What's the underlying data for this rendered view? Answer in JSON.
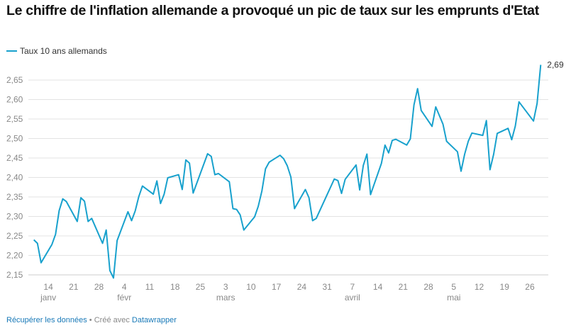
{
  "title": "Le chiffre de l'inflation allemande a provoqué un pic de taux sur les emprunts d'Etat",
  "legend": {
    "label": "Taux 10 ans allemands",
    "color": "#18a1cd"
  },
  "footer": {
    "get_data": "Récupérer les données",
    "separator": " • Créé avec ",
    "tool": "Datawrapper"
  },
  "chart_data": {
    "type": "line",
    "title": "Le chiffre de l'inflation allemande a provoqué un pic de taux sur les emprunts d'Etat",
    "xlabel": "",
    "ylabel": "",
    "x_unit": "day of year 2024 (1 = 1 janv)",
    "xlim": [
      8.5,
      152.1
    ],
    "ylim": [
      2.15,
      2.69
    ],
    "grid": true,
    "legend_position": "top-left",
    "y_ticks": [
      "2,15",
      "2,20",
      "2,25",
      "2,30",
      "2,35",
      "2,40",
      "2,45",
      "2,50",
      "2,55",
      "2,60",
      "2,65"
    ],
    "y_tick_values": [
      2.15,
      2.2,
      2.25,
      2.3,
      2.35,
      2.4,
      2.45,
      2.5,
      2.55,
      2.6,
      2.65
    ],
    "x_ticks": [
      {
        "day": 14,
        "label": "14",
        "month": "janv"
      },
      {
        "day": 21,
        "label": "21"
      },
      {
        "day": 28,
        "label": "28"
      },
      {
        "day": 35,
        "label": "4",
        "month": "févr"
      },
      {
        "day": 42,
        "label": "11"
      },
      {
        "day": 49,
        "label": "18"
      },
      {
        "day": 56,
        "label": "25"
      },
      {
        "day": 63,
        "label": "3",
        "month": "mars"
      },
      {
        "day": 70,
        "label": "10"
      },
      {
        "day": 77,
        "label": "17"
      },
      {
        "day": 84,
        "label": "24"
      },
      {
        "day": 91,
        "label": "31"
      },
      {
        "day": 98,
        "label": "7",
        "month": "avril"
      },
      {
        "day": 105,
        "label": "14"
      },
      {
        "day": 112,
        "label": "21"
      },
      {
        "day": 119,
        "label": "28"
      },
      {
        "day": 126,
        "label": "5",
        "month": "mai"
      },
      {
        "day": 133,
        "label": "12"
      },
      {
        "day": 140,
        "label": "19"
      },
      {
        "day": 147,
        "label": "26"
      }
    ],
    "end_label": "2,69",
    "series": [
      {
        "name": "Taux 10 ans allemands",
        "color": "#18a1cd",
        "x": [
          10,
          11,
          12,
          15,
          16,
          17,
          18,
          19,
          22,
          23,
          24,
          25,
          26,
          29,
          30,
          31,
          32,
          33,
          36,
          37,
          38,
          39,
          40,
          43,
          44,
          45,
          46,
          47,
          50,
          51,
          52,
          53,
          54,
          58,
          59,
          60,
          61,
          64,
          65,
          66,
          67,
          68,
          71,
          72,
          73,
          74,
          75,
          78,
          79,
          80,
          81,
          82,
          85,
          86,
          87,
          88,
          93,
          94,
          95,
          96,
          99,
          100,
          101,
          102,
          103,
          106,
          107,
          108,
          109,
          110,
          113,
          114,
          115,
          116,
          117,
          120,
          121,
          123,
          124,
          127,
          128,
          129,
          130,
          131,
          134,
          135,
          136,
          137,
          138,
          141,
          142,
          143,
          144,
          148,
          149,
          150
        ],
        "values": [
          2.24,
          2.231,
          2.181,
          2.228,
          2.254,
          2.315,
          2.345,
          2.338,
          2.287,
          2.348,
          2.339,
          2.287,
          2.295,
          2.231,
          2.265,
          2.161,
          2.142,
          2.238,
          2.312,
          2.289,
          2.314,
          2.351,
          2.378,
          2.357,
          2.391,
          2.333,
          2.357,
          2.399,
          2.407,
          2.369,
          2.445,
          2.437,
          2.36,
          2.461,
          2.454,
          2.407,
          2.41,
          2.389,
          2.32,
          2.318,
          2.304,
          2.265,
          2.299,
          2.326,
          2.365,
          2.422,
          2.439,
          2.457,
          2.448,
          2.43,
          2.401,
          2.32,
          2.369,
          2.348,
          2.289,
          2.295,
          2.396,
          2.392,
          2.359,
          2.395,
          2.432,
          2.368,
          2.431,
          2.46,
          2.356,
          2.436,
          2.483,
          2.463,
          2.495,
          2.498,
          2.483,
          2.499,
          2.586,
          2.628,
          2.572,
          2.531,
          2.581,
          2.537,
          2.493,
          2.466,
          2.416,
          2.46,
          2.493,
          2.514,
          2.508,
          2.546,
          2.42,
          2.459,
          2.513,
          2.526,
          2.497,
          2.532,
          2.594,
          2.545,
          2.59,
          2.689
        ]
      }
    ]
  }
}
